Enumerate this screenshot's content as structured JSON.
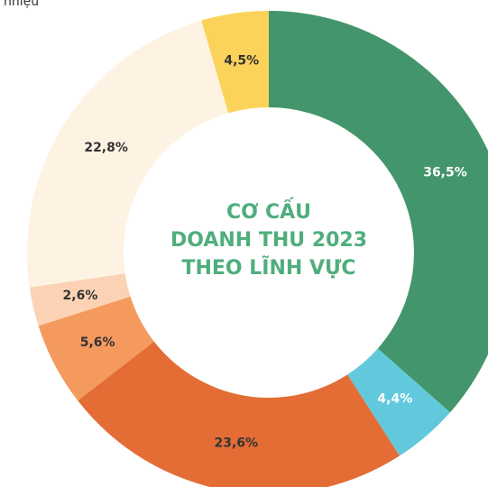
{
  "caption": "nhiệu",
  "chart_data": {
    "type": "donut",
    "title_lines": [
      "CƠ CẤU",
      "DOANH THU 2023",
      "THEO LĨNH VỰC"
    ],
    "values": [
      36.5,
      4.4,
      23.6,
      5.6,
      2.6,
      22.8,
      4.5
    ],
    "value_labels": [
      "36,5%",
      "4,4%",
      "23,6%",
      "5,6%",
      "2,6%",
      "22,8%",
      "4,5%"
    ],
    "colors": [
      "#43956b",
      "#62c9dd",
      "#e46d35",
      "#f49a5e",
      "#fbd3b4",
      "#fef3e3",
      "#fbd35a"
    ],
    "label_colors": [
      "#ffffff",
      "#ffffff",
      "#333333",
      "#333333",
      "#333333",
      "#333333",
      "#333333"
    ]
  }
}
